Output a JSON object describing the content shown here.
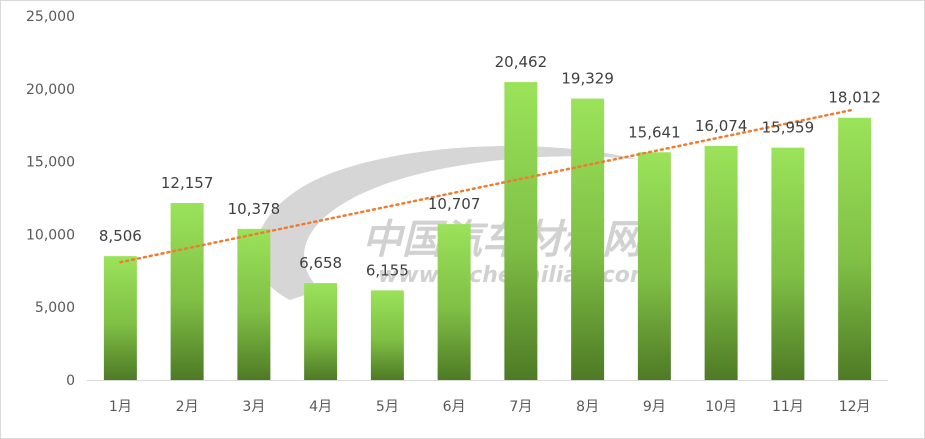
{
  "watermark": {
    "title": "中国汽车材料网",
    "url": "www.qichecailiao.com"
  },
  "chart_data": {
    "type": "bar",
    "categories": [
      "1月",
      "2月",
      "3月",
      "4月",
      "5月",
      "6月",
      "7月",
      "8月",
      "9月",
      "10月",
      "11月",
      "12月"
    ],
    "values": [
      8506,
      12157,
      10378,
      6658,
      6155,
      10707,
      20462,
      19329,
      15641,
      16074,
      15959,
      18012
    ],
    "data_labels": [
      "8,506",
      "12,157",
      "10,378",
      "6,658",
      "6,155",
      "10,707",
      "20,462",
      "19,329",
      "15,641",
      "16,074",
      "15,959",
      "18,012"
    ],
    "y_ticks": [
      0,
      5000,
      10000,
      15000,
      20000,
      25000
    ],
    "y_tick_labels": [
      "0",
      "5,000",
      "10,000",
      "15,000",
      "20,000",
      "25,000"
    ],
    "ylim": [
      0,
      25000
    ],
    "trendline": {
      "type": "linear",
      "style": "dotted"
    },
    "grid": false,
    "colors": {
      "bar_top": "#9be35a",
      "bar_bottom": "#4e7a25",
      "trend": "#ed7d31",
      "axis": "#d9d9d9"
    }
  }
}
